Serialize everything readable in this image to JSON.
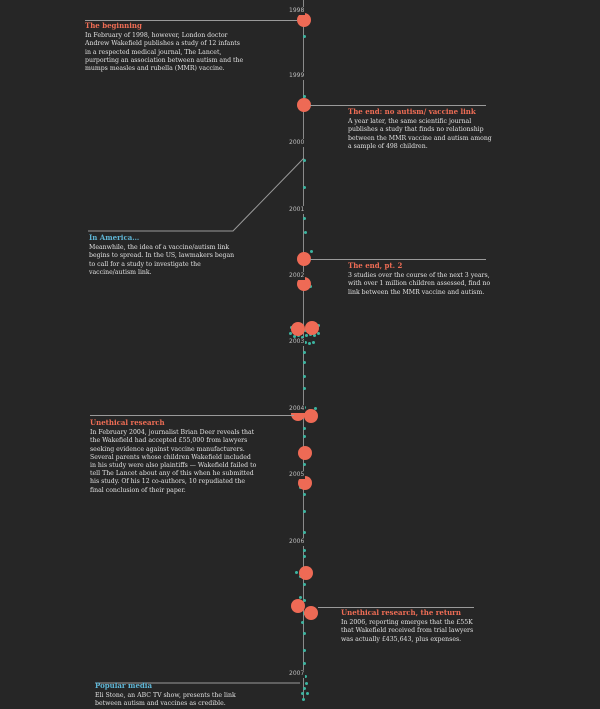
{
  "years": [
    "1998",
    "1999",
    "2000",
    "2001",
    "2002",
    "2003",
    "2004",
    "2005",
    "2006",
    "2007"
  ],
  "annotations": [
    {
      "title": "The beginning",
      "color": "red",
      "text": "In February of 1998, however, London doctor Andrew Wakefield publishes a study of 12 infants in a respected medical journal, The Lancet, purporting an association between autism and the mumps measles and rubella (MMR) vaccine."
    },
    {
      "title": "The end: no autism/ vaccine link",
      "color": "red",
      "text": "A year later, the same scientific journal publishes a study that finds no relationship between the MMR vaccine and autism among a sample of 498 children."
    },
    {
      "title": "In America…",
      "color": "teal",
      "text": "Meanwhile, the idea of a vaccine/autism link begins to spread. In the US, lawmakers began to call for a study to investigate the vaccine/autism link."
    },
    {
      "title": "The end, pt. 2",
      "color": "red",
      "text": "3 studies over the course of the next 3 years, with over 1 million children assessed, find no link between the MMR vaccine and autism."
    },
    {
      "title": "Unethical research",
      "color": "red",
      "text": "In February 2004, journalist Brian Deer reveals that the Wakefield had accepted £55,000 from lawyers seeking evidence against vaccine manufacturers. Several parents whose children Wakefield included in his study were also plaintiffs — Wakefield failed to tell The Lancet about any of this when he submitted his study. Of his 12 co-authors, 10 repudiated the final conclusion of their paper."
    },
    {
      "title": "Unethical research, the return",
      "color": "red",
      "text": "In 2006, reporting emerges that the £55K that Wakefield received from trial lawyers was actually £435,643, plus expenses."
    },
    {
      "title": "Popular media",
      "color": "teal",
      "text": "Eli Stone, an ABC TV show, presents the link between autism and vaccines as credible."
    }
  ]
}
